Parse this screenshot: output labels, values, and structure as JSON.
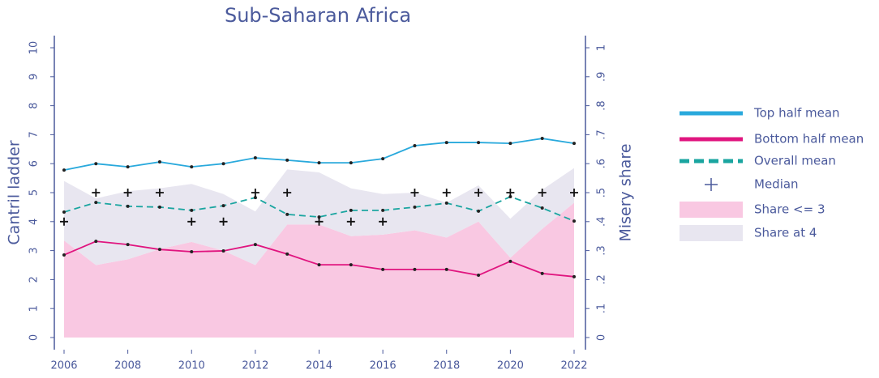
{
  "chart_data": {
    "type": "line",
    "title": "Sub-Saharan Africa",
    "y_label": "Cantril ladder",
    "y2_label": "Misery share",
    "x": [
      2006,
      2007,
      2008,
      2009,
      2010,
      2011,
      2012,
      2013,
      2014,
      2015,
      2016,
      2017,
      2018,
      2019,
      2020,
      2021,
      2022
    ],
    "xlim": [
      2006,
      2022
    ],
    "xticks": [
      2006,
      2008,
      2010,
      2012,
      2014,
      2016,
      2018,
      2020,
      2022
    ],
    "ylim": [
      0,
      10
    ],
    "yticks": [
      0,
      1,
      2,
      3,
      4,
      5,
      6,
      7,
      8,
      9,
      10
    ],
    "y2lim": [
      0,
      1
    ],
    "y2ticks": [
      0,
      {
        "value": 0.1,
        "label": ".1"
      },
      {
        "value": 0.2,
        "label": ".2"
      },
      {
        "value": 0.3,
        "label": ".3"
      },
      {
        "value": 0.4,
        "label": ".4"
      },
      {
        "value": 0.5,
        "label": ".5"
      },
      {
        "value": 0.6,
        "label": ".6"
      },
      {
        "value": 0.7,
        "label": ".7"
      },
      {
        "value": 0.8,
        "label": ".8"
      },
      {
        "value": 0.9,
        "label": ".9"
      },
      1
    ],
    "series": [
      {
        "name": "Top half mean",
        "color": "#29a9dc",
        "style": "solid",
        "values": [
          5.78,
          6.0,
          5.89,
          6.06,
          5.89,
          6.0,
          6.2,
          6.12,
          6.03,
          6.03,
          6.17,
          6.62,
          6.73,
          6.73,
          6.7,
          6.87,
          6.7
        ]
      },
      {
        "name": "Bottom half mean",
        "color": "#e0157f",
        "style": "solid",
        "values": [
          2.85,
          3.32,
          3.21,
          3.04,
          2.96,
          2.99,
          3.21,
          2.88,
          2.51,
          2.51,
          2.35,
          2.35,
          2.35,
          2.15,
          2.63,
          2.21,
          2.1
        ]
      },
      {
        "name": "Overall mean",
        "color": "#1aa5a0",
        "style": "dashed",
        "values": [
          4.33,
          4.66,
          4.53,
          4.5,
          4.39,
          4.55,
          4.83,
          4.25,
          4.16,
          4.39,
          4.39,
          4.5,
          4.64,
          4.36,
          4.86,
          4.47,
          4.02
        ]
      },
      {
        "name": "Median",
        "color": "#111111",
        "style": "plus",
        "values": [
          4,
          5,
          5,
          5,
          4,
          4,
          5,
          5,
          4,
          4,
          4,
          5,
          5,
          5,
          5,
          5,
          5
        ]
      },
      {
        "name": "Share <= 3",
        "color": "#f9c8e2",
        "style": "area",
        "axis": "y2",
        "values": [
          0.335,
          0.25,
          0.27,
          0.305,
          0.33,
          0.3,
          0.25,
          0.39,
          0.39,
          0.35,
          0.355,
          0.37,
          0.345,
          0.4,
          0.275,
          0.375,
          0.465
        ]
      },
      {
        "name": "Share at 4",
        "color": "#e8e6f0",
        "style": "area",
        "axis": "y2",
        "values": [
          0.205,
          0.23,
          0.235,
          0.21,
          0.2,
          0.195,
          0.185,
          0.19,
          0.18,
          0.165,
          0.14,
          0.13,
          0.12,
          0.125,
          0.135,
          0.135,
          0.12
        ]
      }
    ]
  }
}
